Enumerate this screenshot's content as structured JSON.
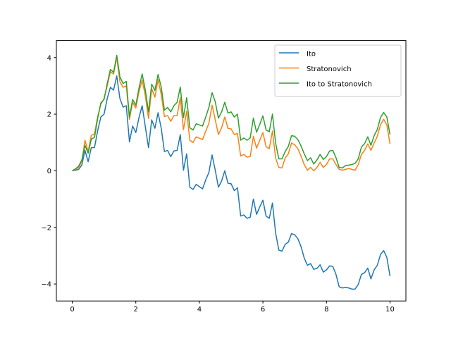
{
  "chart_data": {
    "type": "line",
    "title": "",
    "xlabel": "",
    "ylabel": "",
    "xlim": [
      -0.5,
      10.5
    ],
    "ylim": [
      -4.6,
      4.6
    ],
    "xticks": [
      0,
      2,
      4,
      6,
      8,
      10
    ],
    "xtick_labels": [
      "0",
      "2",
      "4",
      "6",
      "8",
      "10"
    ],
    "yticks": [
      -4,
      -2,
      0,
      2,
      4
    ],
    "ytick_labels": [
      "−4",
      "−2",
      "0",
      "2",
      "4"
    ],
    "grid": false,
    "legend_position": "upper right",
    "series": [
      {
        "name": "Ito",
        "color": "#1f77b4",
        "x": [
          0,
          0.1,
          0.2,
          0.3,
          0.4,
          0.5,
          0.6,
          0.7,
          0.8,
          0.9,
          1.0,
          1.1,
          1.2,
          1.3,
          1.4,
          1.5,
          1.6,
          1.7,
          1.8,
          1.9,
          2.0,
          2.1,
          2.2,
          2.3,
          2.4,
          2.5,
          2.6,
          2.7,
          2.8,
          2.9,
          3.0,
          3.1,
          3.2,
          3.3,
          3.4,
          3.5,
          3.6,
          3.7,
          3.8,
          3.9,
          4.0,
          4.1,
          4.2,
          4.3,
          4.4,
          4.5,
          4.6,
          4.7,
          4.8,
          4.9,
          5.0,
          5.1,
          5.2,
          5.3,
          5.4,
          5.5,
          5.6,
          5.7,
          5.8,
          5.9,
          6.0,
          6.1,
          6.2,
          6.3,
          6.4,
          6.5,
          6.6,
          6.7,
          6.8,
          6.9,
          7.0,
          7.1,
          7.2,
          7.3,
          7.4,
          7.5,
          7.6,
          7.7,
          7.8,
          7.9,
          8.0,
          8.1,
          8.2,
          8.3,
          8.4,
          8.5,
          8.6,
          8.7,
          8.8,
          8.9,
          9.0,
          9.1,
          9.2,
          9.3,
          9.4,
          9.5,
          9.6,
          9.7,
          9.8,
          9.9,
          10.0
        ],
        "values": [
          0.0,
          0.02,
          0.05,
          0.2,
          0.72,
          0.32,
          0.82,
          0.82,
          1.42,
          1.9,
          2.0,
          2.55,
          2.95,
          2.85,
          3.35,
          2.55,
          2.25,
          2.3,
          1.02,
          1.58,
          1.35,
          1.88,
          2.3,
          1.55,
          0.82,
          1.8,
          1.5,
          2.05,
          1.5,
          0.68,
          0.72,
          0.5,
          0.7,
          0.72,
          1.28,
          0.02,
          0.6,
          -0.58,
          -0.66,
          -0.48,
          -0.56,
          -0.64,
          -0.32,
          -0.06,
          0.56,
          0.02,
          -0.58,
          -0.36,
          0.0,
          -0.44,
          -0.46,
          -0.7,
          -0.6,
          -1.6,
          -1.56,
          -1.68,
          -1.64,
          -1.0,
          -1.54,
          -1.28,
          -1.04,
          -1.6,
          -1.68,
          -1.14,
          -2.2,
          -2.8,
          -2.84,
          -2.6,
          -2.52,
          -2.22,
          -2.26,
          -2.4,
          -2.68,
          -3.08,
          -3.34,
          -3.28,
          -3.48,
          -3.45,
          -3.32,
          -3.58,
          -3.5,
          -3.36,
          -3.38,
          -3.66,
          -4.1,
          -4.14,
          -4.12,
          -4.14,
          -4.18,
          -4.18,
          -4.02,
          -3.66,
          -3.6,
          -3.44,
          -3.82,
          -3.5,
          -3.34,
          -2.96,
          -2.82,
          -3.06,
          -3.72
        ]
      },
      {
        "name": "Stratonovich",
        "color": "#ff7f0e",
        "x": [
          0,
          0.1,
          0.2,
          0.3,
          0.4,
          0.5,
          0.6,
          0.7,
          0.8,
          0.9,
          1.0,
          1.1,
          1.2,
          1.3,
          1.4,
          1.5,
          1.6,
          1.7,
          1.8,
          1.9,
          2.0,
          2.1,
          2.2,
          2.3,
          2.4,
          2.5,
          2.6,
          2.7,
          2.8,
          2.9,
          3.0,
          3.1,
          3.2,
          3.3,
          3.4,
          3.5,
          3.6,
          3.7,
          3.8,
          3.9,
          4.0,
          4.1,
          4.2,
          4.3,
          4.4,
          4.5,
          4.6,
          4.7,
          4.8,
          4.9,
          5.0,
          5.1,
          5.2,
          5.3,
          5.4,
          5.5,
          5.6,
          5.7,
          5.8,
          5.9,
          6.0,
          6.1,
          6.2,
          6.3,
          6.4,
          6.5,
          6.6,
          6.7,
          6.8,
          6.9,
          7.0,
          7.1,
          7.2,
          7.3,
          7.4,
          7.5,
          7.6,
          7.7,
          7.8,
          7.9,
          8.0,
          8.1,
          8.2,
          8.3,
          8.4,
          8.5,
          8.6,
          8.7,
          8.8,
          8.9,
          9.0,
          9.1,
          9.2,
          9.3,
          9.4,
          9.5,
          9.6,
          9.7,
          9.8,
          9.9,
          10.0
        ],
        "values": [
          0.0,
          0.05,
          0.12,
          0.32,
          1.08,
          0.68,
          1.25,
          1.3,
          1.92,
          2.35,
          2.55,
          3.0,
          3.5,
          3.42,
          4.0,
          3.15,
          2.95,
          3.0,
          1.82,
          2.42,
          2.22,
          2.8,
          3.2,
          2.65,
          1.85,
          2.9,
          2.6,
          3.22,
          2.7,
          1.92,
          1.95,
          1.75,
          1.95,
          1.95,
          2.58,
          1.45,
          2.1,
          1.08,
          1.0,
          1.2,
          1.15,
          1.1,
          1.4,
          1.68,
          2.32,
          1.8,
          1.28,
          1.52,
          1.9,
          1.5,
          1.48,
          1.28,
          1.32,
          0.52,
          0.58,
          0.48,
          0.5,
          1.22,
          0.8,
          1.08,
          1.35,
          0.85,
          0.78,
          1.4,
          0.45,
          0.12,
          0.1,
          0.45,
          0.6,
          0.98,
          0.92,
          0.78,
          0.52,
          0.22,
          0.02,
          0.12,
          0.0,
          0.12,
          0.3,
          0.12,
          0.22,
          0.42,
          0.42,
          0.22,
          0.05,
          0.02,
          0.05,
          0.08,
          0.05,
          0.02,
          0.22,
          0.58,
          0.72,
          0.95,
          0.72,
          0.98,
          1.22,
          1.62,
          1.82,
          1.62,
          0.95
        ]
      },
      {
        "name": "Ito to Stratonovich",
        "color": "#2ca02c",
        "x": [
          0,
          0.1,
          0.2,
          0.3,
          0.4,
          0.5,
          0.6,
          0.7,
          0.8,
          0.9,
          1.0,
          1.1,
          1.2,
          1.3,
          1.4,
          1.5,
          1.6,
          1.7,
          1.8,
          1.9,
          2.0,
          2.1,
          2.2,
          2.3,
          2.4,
          2.5,
          2.6,
          2.7,
          2.8,
          2.9,
          3.0,
          3.1,
          3.2,
          3.3,
          3.4,
          3.5,
          3.6,
          3.7,
          3.8,
          3.9,
          4.0,
          4.1,
          4.2,
          4.3,
          4.4,
          4.5,
          4.6,
          4.7,
          4.8,
          4.9,
          5.0,
          5.1,
          5.2,
          5.3,
          5.4,
          5.5,
          5.6,
          5.7,
          5.8,
          5.9,
          6.0,
          6.1,
          6.2,
          6.3,
          6.4,
          6.5,
          6.6,
          6.7,
          6.8,
          6.9,
          7.0,
          7.1,
          7.2,
          7.3,
          7.4,
          7.5,
          7.6,
          7.7,
          7.8,
          7.9,
          8.0,
          8.1,
          8.2,
          8.3,
          8.4,
          8.5,
          8.6,
          8.7,
          8.8,
          8.9,
          9.0,
          9.1,
          9.2,
          9.3,
          9.4,
          9.5,
          9.6,
          9.7,
          9.8,
          9.9,
          10.0
        ],
        "values": [
          0.0,
          0.07,
          0.16,
          0.38,
          0.9,
          0.62,
          1.12,
          1.18,
          1.85,
          2.4,
          2.52,
          3.08,
          3.58,
          3.48,
          4.08,
          3.32,
          3.08,
          3.16,
          1.9,
          2.52,
          2.32,
          2.92,
          3.42,
          2.85,
          2.08,
          3.06,
          2.84,
          3.4,
          2.96,
          2.14,
          2.24,
          2.08,
          2.3,
          2.42,
          2.96,
          1.88,
          2.58,
          1.52,
          1.44,
          1.66,
          1.62,
          1.58,
          1.9,
          2.24,
          2.76,
          2.44,
          1.86,
          2.08,
          2.42,
          2.04,
          2.08,
          1.9,
          2.0,
          1.08,
          1.16,
          1.08,
          1.16,
          1.86,
          1.36,
          1.64,
          1.94,
          1.44,
          1.38,
          2.0,
          0.98,
          0.42,
          0.42,
          0.68,
          0.86,
          1.24,
          1.22,
          1.1,
          0.88,
          0.6,
          0.36,
          0.46,
          0.24,
          0.38,
          0.58,
          0.4,
          0.5,
          0.7,
          0.72,
          0.46,
          0.12,
          0.1,
          0.18,
          0.2,
          0.22,
          0.26,
          0.42,
          0.84,
          0.96,
          1.2,
          0.9,
          1.24,
          1.46,
          1.88,
          2.06,
          1.9,
          1.28
        ]
      }
    ]
  }
}
